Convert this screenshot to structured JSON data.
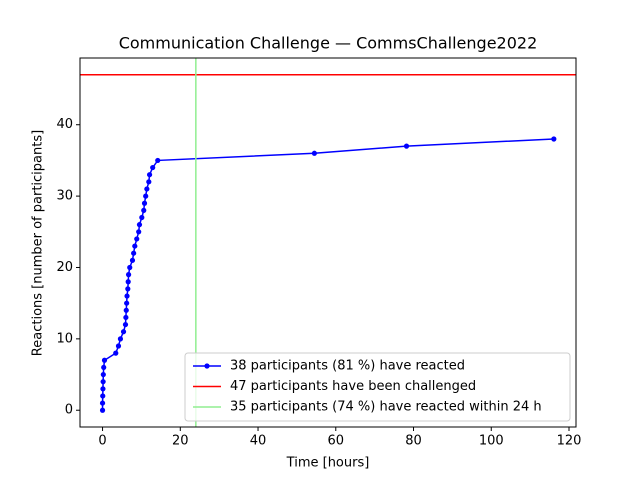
{
  "chart_data": {
    "type": "line",
    "title": "Communication Challenge — CommsChallenge2022",
    "xlabel": "Time [hours]",
    "ylabel": "Reactions [number of participants]",
    "series": [
      {
        "name": "38 participants (81 %) have reacted",
        "color": "#0000ff",
        "kind": "line",
        "marker": true,
        "x": [
          0,
          0,
          0.05,
          0.1,
          0.15,
          0.2,
          0.3,
          0.5,
          3.4,
          4.1,
          4.6,
          5.4,
          5.9,
          6.0,
          6.1,
          6.2,
          6.3,
          6.5,
          6.6,
          6.7,
          7.0,
          7.7,
          8.0,
          8.3,
          8.8,
          9.3,
          9.5,
          10.1,
          10.6,
          10.8,
          11.1,
          11.4,
          11.9,
          12.1,
          12.9,
          14.2,
          54.5,
          78.2,
          116.1
        ],
        "values": [
          0,
          1,
          2,
          3,
          4,
          5,
          6,
          7,
          8,
          9,
          10,
          11,
          12,
          13,
          14,
          15,
          16,
          17,
          18,
          19,
          20,
          21,
          22,
          23,
          24,
          25,
          26,
          27,
          28,
          29,
          30,
          31,
          32,
          33,
          34,
          35,
          36,
          37,
          38
        ]
      },
      {
        "name": "47 participants have been challenged",
        "color": "#ff0000",
        "kind": "hline",
        "values": [
          47
        ]
      },
      {
        "name": "35 participants (74 %) have reacted within 24 h",
        "color": "#90ee90",
        "kind": "vline",
        "x": [
          24
        ]
      }
    ],
    "xlim": [
      -5.8,
      121.8
    ],
    "ylim": [
      -2.35,
      49.35
    ],
    "xticks": [
      0,
      20,
      40,
      60,
      80,
      100,
      120
    ],
    "yticks": [
      0,
      10,
      20,
      30,
      40
    ],
    "legend": "lower right"
  }
}
